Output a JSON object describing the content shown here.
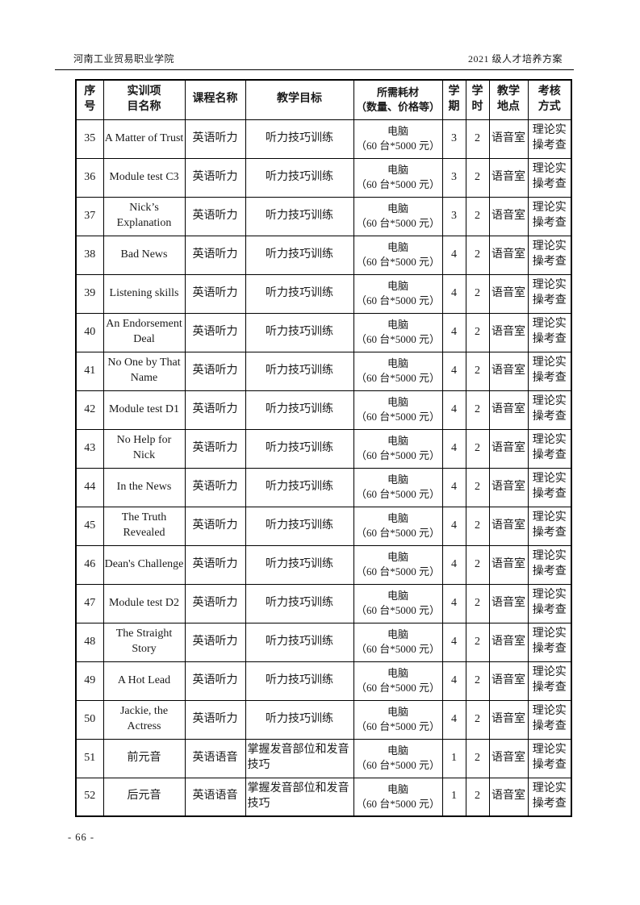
{
  "page_header": {
    "left": "河南工业贸易职业学院",
    "right": "2021 级人才培养方案"
  },
  "footer": {
    "page_number": "- 66 -"
  },
  "table": {
    "columns": [
      {
        "id": "seq-no",
        "label": "序\n号"
      },
      {
        "id": "project-name",
        "label": "实训项\n目名称"
      },
      {
        "id": "course-name",
        "label": "课程名称"
      },
      {
        "id": "teaching-goal",
        "label": "教学目标"
      },
      {
        "id": "materials",
        "label": "所需耗材\n（数量、价格等）"
      },
      {
        "id": "semester",
        "label": "学\n期"
      },
      {
        "id": "hours",
        "label": "学\n时"
      },
      {
        "id": "location",
        "label": "教学\n地点"
      },
      {
        "id": "assessment",
        "label": "考核\n方式"
      }
    ],
    "rows": [
      {
        "no": "35",
        "project": "A Matter of Trust",
        "course": "英语听力",
        "goal": "听力技巧训练",
        "materials": "电脑\n（60 台*5000 元）",
        "semester": "3",
        "hours": "2",
        "location": "语音室",
        "assessment": "理论实操考查"
      },
      {
        "no": "36",
        "project": "Module test C3",
        "course": "英语听力",
        "goal": "听力技巧训练",
        "materials": "电脑\n（60 台*5000 元）",
        "semester": "3",
        "hours": "2",
        "location": "语音室",
        "assessment": "理论实操考查"
      },
      {
        "no": "37",
        "project": "Nick’s Explanation",
        "course": "英语听力",
        "goal": "听力技巧训练",
        "materials": "电脑\n（60 台*5000 元）",
        "semester": "3",
        "hours": "2",
        "location": "语音室",
        "assessment": "理论实操考查"
      },
      {
        "no": "38",
        "project": "Bad News",
        "course": "英语听力",
        "goal": "听力技巧训练",
        "materials": "电脑\n（60 台*5000 元）",
        "semester": "4",
        "hours": "2",
        "location": "语音室",
        "assessment": "理论实操考查"
      },
      {
        "no": "39",
        "project": "Listening skills",
        "course": "英语听力",
        "goal": "听力技巧训练",
        "materials": "电脑\n（60 台*5000 元）",
        "semester": "4",
        "hours": "2",
        "location": "语音室",
        "assessment": "理论实操考查"
      },
      {
        "no": "40",
        "project": "An Endorsement Deal",
        "course": "英语听力",
        "goal": "听力技巧训练",
        "materials": "电脑\n（60 台*5000 元）",
        "semester": "4",
        "hours": "2",
        "location": "语音室",
        "assessment": "理论实操考查"
      },
      {
        "no": "41",
        "project": "No One by That Name",
        "course": "英语听力",
        "goal": "听力技巧训练",
        "materials": "电脑\n（60 台*5000 元）",
        "semester": "4",
        "hours": "2",
        "location": "语音室",
        "assessment": "理论实操考查"
      },
      {
        "no": "42",
        "project": "Module test D1",
        "course": "英语听力",
        "goal": "听力技巧训练",
        "materials": "电脑\n（60 台*5000 元）",
        "semester": "4",
        "hours": "2",
        "location": "语音室",
        "assessment": "理论实操考查"
      },
      {
        "no": "43",
        "project": "No Help for Nick",
        "course": "英语听力",
        "goal": "听力技巧训练",
        "materials": "电脑\n（60 台*5000 元）",
        "semester": "4",
        "hours": "2",
        "location": "语音室",
        "assessment": "理论实操考查"
      },
      {
        "no": "44",
        "project": "In the News",
        "course": "英语听力",
        "goal": "听力技巧训练",
        "materials": "电脑\n（60 台*5000 元）",
        "semester": "4",
        "hours": "2",
        "location": "语音室",
        "assessment": "理论实操考查"
      },
      {
        "no": "45",
        "project": "The Truth Revealed",
        "course": "英语听力",
        "goal": "听力技巧训练",
        "materials": "电脑\n（60 台*5000 元）",
        "semester": "4",
        "hours": "2",
        "location": "语音室",
        "assessment": "理论实操考查"
      },
      {
        "no": "46",
        "project": "Dean's Challenge",
        "course": "英语听力",
        "goal": "听力技巧训练",
        "materials": "电脑\n（60 台*5000 元）",
        "semester": "4",
        "hours": "2",
        "location": "语音室",
        "assessment": "理论实操考查"
      },
      {
        "no": "47",
        "project": "Module test D2",
        "course": "英语听力",
        "goal": "听力技巧训练",
        "materials": "电脑\n（60 台*5000 元）",
        "semester": "4",
        "hours": "2",
        "location": "语音室",
        "assessment": "理论实操考查"
      },
      {
        "no": "48",
        "project": "The Straight Story",
        "course": "英语听力",
        "goal": "听力技巧训练",
        "materials": "电脑\n（60 台*5000 元）",
        "semester": "4",
        "hours": "2",
        "location": "语音室",
        "assessment": "理论实操考查"
      },
      {
        "no": "49",
        "project": "A Hot Lead",
        "course": "英语听力",
        "goal": "听力技巧训练",
        "materials": "电脑\n（60 台*5000 元）",
        "semester": "4",
        "hours": "2",
        "location": "语音室",
        "assessment": "理论实操考查"
      },
      {
        "no": "50",
        "project": "Jackie, the Actress",
        "course": "英语听力",
        "goal": "听力技巧训练",
        "materials": "电脑\n（60 台*5000 元）",
        "semester": "4",
        "hours": "2",
        "location": "语音室",
        "assessment": "理论实操考查"
      },
      {
        "no": "51",
        "project": "前元音",
        "course": "英语语音",
        "goal": "掌握发音部位和发音技巧",
        "materials": "电脑\n（60 台*5000 元）",
        "semester": "1",
        "hours": "2",
        "location": "语音室",
        "assessment": "理论实操考查"
      },
      {
        "no": "52",
        "project": "后元音",
        "course": "英语语音",
        "goal": "掌握发音部位和发音技巧",
        "materials": "电脑\n（60 台*5000 元）",
        "semester": "1",
        "hours": "2",
        "location": "语音室",
        "assessment": "理论实操考查"
      }
    ]
  }
}
